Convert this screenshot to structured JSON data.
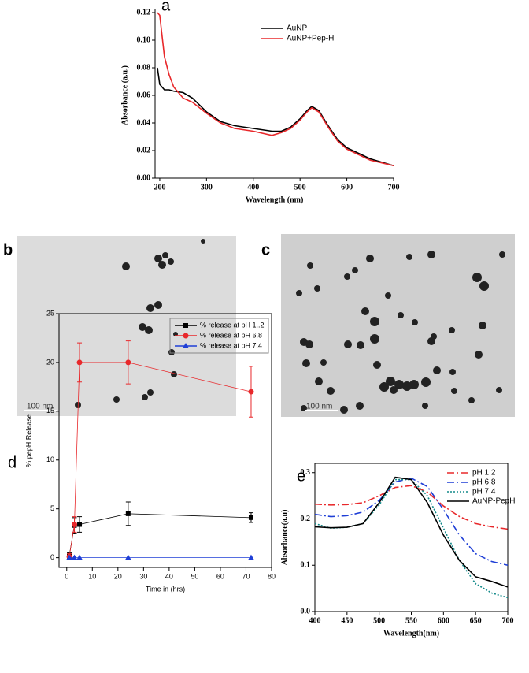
{
  "chart_data": [
    {
      "type": "line",
      "label": "a",
      "xlabel": "Wavelength (nm)",
      "ylabel": "Absorbance (a.u.)",
      "x": [
        195,
        200,
        210,
        220,
        230,
        250,
        270,
        300,
        330,
        360,
        400,
        440,
        460,
        480,
        500,
        515,
        525,
        540,
        560,
        580,
        600,
        650,
        700
      ],
      "series": [
        {
          "name": "AuNP",
          "color": "#000000",
          "values": [
            0.08,
            0.068,
            0.064,
            0.064,
            0.063,
            0.062,
            0.058,
            0.048,
            0.041,
            0.038,
            0.036,
            0.034,
            0.034,
            0.037,
            0.043,
            0.049,
            0.052,
            0.049,
            0.038,
            0.028,
            0.022,
            0.014,
            0.009
          ]
        },
        {
          "name": "AuNP+Pep-H",
          "color": "#e8282b",
          "values": [
            0.12,
            0.118,
            0.088,
            0.075,
            0.066,
            0.058,
            0.055,
            0.047,
            0.04,
            0.036,
            0.034,
            0.031,
            0.033,
            0.036,
            0.042,
            0.048,
            0.051,
            0.048,
            0.037,
            0.027,
            0.021,
            0.013,
            0.009
          ]
        }
      ],
      "xlim": [
        190,
        700
      ],
      "xticks": [
        200,
        300,
        400,
        500,
        600,
        700
      ],
      "ylim": [
        0,
        0.12
      ],
      "yticks": [
        {
          "value": 0,
          "label": "0.00"
        },
        {
          "value": 0.02,
          "label": "0.02"
        },
        {
          "value": 0.04,
          "label": "0.04"
        },
        {
          "value": 0.06,
          "label": "0.06"
        },
        {
          "value": 0.08,
          "label": "0.08"
        },
        {
          "value": 0.1,
          "label": "0.10"
        },
        {
          "value": 0.12,
          "label": "0.12"
        }
      ],
      "legend": "upper right"
    },
    {
      "type": "line",
      "label": "d",
      "xlabel": "Time in (hrs)",
      "ylabel": "% pepH Release",
      "series": [
        {
          "name": "% release at pH 1..2",
          "color": "#000000",
          "marker": "square",
          "x": [
            1,
            3,
            5,
            24,
            72
          ],
          "values": [
            0.2,
            3.3,
            3.4,
            4.5,
            4.1
          ],
          "errors": [
            0.3,
            0.8,
            0.8,
            1.2,
            0.5
          ]
        },
        {
          "name": "% release at pH 6.8",
          "color": "#e8282b",
          "marker": "circle",
          "x": [
            1,
            3,
            5,
            24,
            72
          ],
          "values": [
            0.1,
            3.4,
            20,
            20,
            17
          ],
          "errors": [
            0.3,
            0.8,
            2,
            2.2,
            2.6
          ]
        },
        {
          "name": "% release at pH 7.4",
          "color": "#1f3fd6",
          "marker": "triangle",
          "x": [
            1,
            3,
            5,
            24,
            72
          ],
          "values": [
            0,
            0,
            0,
            0,
            0
          ]
        }
      ],
      "xlim": [
        -3,
        80
      ],
      "xticks": [
        0,
        10,
        20,
        30,
        40,
        50,
        60,
        70,
        80
      ],
      "ylim": [
        -1,
        25
      ],
      "yticks": [
        0,
        5,
        10,
        15,
        20,
        25
      ],
      "legend": "upper right"
    },
    {
      "type": "line",
      "label": "e",
      "xlabel": "Wavelength(nm)",
      "ylabel": "Absorbance(a.u)",
      "x": [
        400,
        425,
        450,
        475,
        500,
        525,
        550,
        575,
        600,
        625,
        650,
        675,
        700
      ],
      "series": [
        {
          "name": "pH 1.2",
          "color": "#e8282b",
          "dash": "dashdot",
          "values": [
            0.232,
            0.23,
            0.231,
            0.235,
            0.25,
            0.268,
            0.272,
            0.258,
            0.228,
            0.205,
            0.19,
            0.183,
            0.178
          ]
        },
        {
          "name": "pH 6.8",
          "color": "#1f3fd6",
          "dash": "dashdot",
          "values": [
            0.21,
            0.205,
            0.207,
            0.215,
            0.24,
            0.28,
            0.288,
            0.27,
            0.22,
            0.165,
            0.125,
            0.108,
            0.1
          ]
        },
        {
          "name": "pH 7.4",
          "color": "#138a8a",
          "dash": "dotted",
          "values": [
            0.19,
            0.18,
            0.182,
            0.19,
            0.23,
            0.285,
            0.285,
            0.25,
            0.18,
            0.11,
            0.06,
            0.04,
            0.03
          ]
        },
        {
          "name": "AuNP-PepH",
          "color": "#000000",
          "values": [
            0.183,
            0.181,
            0.182,
            0.19,
            0.235,
            0.29,
            0.285,
            0.235,
            0.165,
            0.11,
            0.075,
            0.065,
            0.053
          ]
        }
      ],
      "xlim": [
        400,
        700
      ],
      "xticks": [
        400,
        450,
        500,
        550,
        600,
        650,
        700
      ],
      "ylim": [
        0,
        0.32
      ],
      "yticks": [
        {
          "value": 0,
          "label": "0.0"
        },
        {
          "value": 0.1,
          "label": "0.1"
        },
        {
          "value": 0.2,
          "label": "0.2"
        },
        {
          "value": 0.3,
          "label": "0.3"
        }
      ],
      "legend": "upper right"
    }
  ],
  "images": [
    {
      "label": "b",
      "scale_bar": "100 nm"
    },
    {
      "label": "c",
      "scale_bar": "100 nm"
    }
  ]
}
